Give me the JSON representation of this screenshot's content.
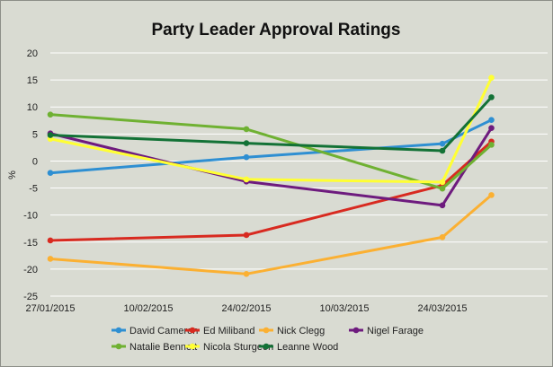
{
  "chart_data": {
    "type": "line",
    "title": "Party Leader Approval Ratings",
    "xlabel": "",
    "ylabel": "%",
    "ylim": [
      -25,
      20
    ],
    "yticks": [
      20,
      15,
      10,
      5,
      0,
      -5,
      -10,
      -15,
      -20,
      -25
    ],
    "xticks": [
      "27/01/2015",
      "10/02/2015",
      "24/02/2015",
      "10/03/2015",
      "24/03/2015"
    ],
    "x_days": [
      0,
      28,
      56,
      63
    ],
    "x_range_days": [
      0,
      70
    ],
    "grid": true,
    "legend_position": "bottom",
    "series": [
      {
        "name": "David Cameron",
        "color": "#2e8fd2",
        "values": [
          -2.2,
          0.7,
          3.2,
          7.6
        ]
      },
      {
        "name": "Ed Miliband",
        "color": "#d82a20",
        "values": [
          -14.7,
          -13.7,
          -4.5,
          3.6
        ]
      },
      {
        "name": "Nick Clegg",
        "color": "#fbb032",
        "values": [
          -18.1,
          -20.9,
          -14.1,
          -6.3
        ]
      },
      {
        "name": "Nigel Farage",
        "color": "#6e1b7e",
        "values": [
          5.1,
          -3.8,
          -8.2,
          6.1
        ]
      },
      {
        "name": "Natalie Bennett",
        "color": "#6fb132",
        "values": [
          8.6,
          5.9,
          -5.1,
          3.0
        ]
      },
      {
        "name": "Nicola Sturgeon",
        "color": "#ffff33",
        "values": [
          4.1,
          -3.4,
          -3.9,
          15.4
        ]
      },
      {
        "name": "Leanne Wood",
        "color": "#137236",
        "values": [
          4.8,
          3.3,
          1.9,
          11.8
        ]
      }
    ]
  }
}
